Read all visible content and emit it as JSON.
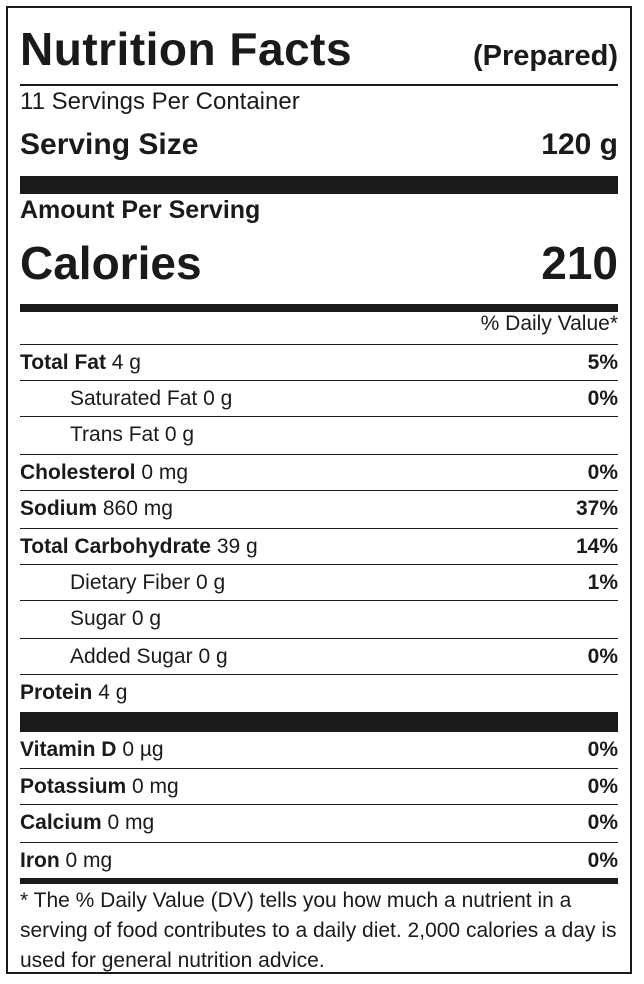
{
  "header": {
    "title": "Nutrition Facts",
    "qualifier": "(Prepared)"
  },
  "servings_per_container": "11 Servings Per Container",
  "serving_size": {
    "label": "Serving Size",
    "value": "120 g"
  },
  "amount_per_serving": "Amount Per Serving",
  "calories": {
    "label": "Calories",
    "value": "210"
  },
  "daily_value_header": "% Daily Value*",
  "nutrients": [
    {
      "name": "Total Fat",
      "amount": "4 g",
      "dv": "5%"
    },
    {
      "name": "Saturated Fat",
      "amount": "0 g",
      "dv": "0%"
    },
    {
      "name": "Trans Fat",
      "amount": "0 g",
      "dv": ""
    },
    {
      "name": "Cholesterol",
      "amount": "0 mg",
      "dv": "0%"
    },
    {
      "name": "Sodium",
      "amount": "860 mg",
      "dv": "37%"
    },
    {
      "name": "Total Carbohydrate",
      "amount": "39 g",
      "dv": "14%"
    },
    {
      "name": "Dietary Fiber",
      "amount": "0 g",
      "dv": "1%"
    },
    {
      "name": "Sugar",
      "amount": "0 g",
      "dv": ""
    },
    {
      "name": "Added Sugar",
      "amount": "0 g",
      "dv": "0%"
    },
    {
      "name": "Protein",
      "amount": "4 g",
      "dv": ""
    }
  ],
  "vitamins": [
    {
      "name": "Vitamin D",
      "amount": "0 µg",
      "dv": "0%"
    },
    {
      "name": "Potassium",
      "amount": "0 mg",
      "dv": "0%"
    },
    {
      "name": "Calcium",
      "amount": "0 mg",
      "dv": "0%"
    },
    {
      "name": "Iron",
      "amount": "0 mg",
      "dv": "0%"
    }
  ],
  "footnote": "* The % Daily Value (DV) tells you how much a nutrient in a serving of food contributes to a daily diet. 2,000 calories a day is used for general nutrition advice."
}
